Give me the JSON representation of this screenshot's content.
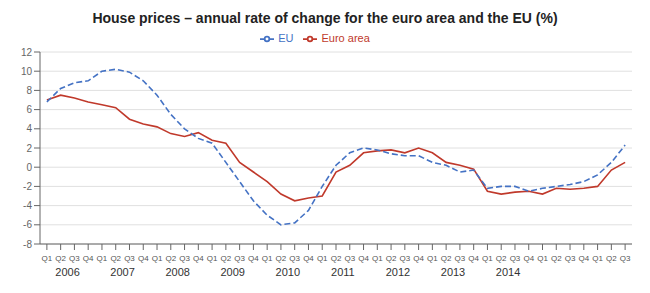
{
  "chart_data": {
    "type": "line",
    "title": "House prices – annual rate of change for the euro area and the EU (%)",
    "categories": [
      "Q1",
      "Q2",
      "Q3",
      "Q4",
      "Q1",
      "Q2",
      "Q3",
      "Q4",
      "Q1",
      "Q2",
      "Q3",
      "Q4",
      "Q1",
      "Q2",
      "Q3",
      "Q4",
      "Q1",
      "Q2",
      "Q3",
      "Q4",
      "Q1",
      "Q2",
      "Q3",
      "Q4",
      "Q1",
      "Q2",
      "Q3",
      "Q4",
      "Q1",
      "Q2",
      "Q3",
      "Q4",
      "Q1",
      "Q2",
      "Q3",
      "Q4",
      "Q1",
      "Q2",
      "Q3",
      "Q4",
      "Q1",
      "Q2",
      "Q3"
    ],
    "series": [
      {
        "name": "Euro area",
        "color": "#c0392b",
        "line_style": "solid",
        "values": [
          7.0,
          7.5,
          7.2,
          6.8,
          6.5,
          6.2,
          5.0,
          4.5,
          4.2,
          3.5,
          3.2,
          3.6,
          2.8,
          2.5,
          0.5,
          -0.5,
          -1.5,
          -2.8,
          -3.5,
          -3.2,
          -3.0,
          -0.5,
          0.2,
          1.5,
          1.7,
          1.8,
          1.5,
          2.0,
          1.5,
          0.5,
          0.2,
          -0.2,
          -2.5,
          -2.8,
          -2.6,
          -2.5,
          -2.8,
          -2.2,
          -2.3,
          -2.2,
          -2.0,
          -0.3,
          0.5
        ]
      },
      {
        "name": "EU",
        "color": "#4472c4",
        "line_style": "dashed",
        "values": [
          6.8,
          8.2,
          8.8,
          9.0,
          10.0,
          10.2,
          9.9,
          9.0,
          7.5,
          5.5,
          4.0,
          3.0,
          2.5,
          0.5,
          -1.5,
          -3.5,
          -5.0,
          -6.0,
          -5.8,
          -4.5,
          -2.0,
          0.2,
          1.5,
          2.0,
          1.8,
          1.4,
          1.2,
          1.2,
          0.5,
          0.2,
          -0.5,
          -0.3,
          -2.2,
          -2.0,
          -2.0,
          -2.5,
          -2.2,
          -2.0,
          -1.8,
          -1.5,
          -0.8,
          0.5,
          2.3
        ]
      }
    ],
    "annotations": [
      {
        "text": "2006",
        "x": 1.5
      },
      {
        "text": "2007",
        "x": 5.5
      },
      {
        "text": "2008",
        "x": 9.5
      },
      {
        "text": "2009",
        "x": 13.5
      },
      {
        "text": "2010",
        "x": 17.5
      },
      {
        "text": "2011",
        "x": 21.5
      },
      {
        "text": "2012",
        "x": 25.5
      },
      {
        "text": "2013",
        "x": 29.5
      },
      {
        "text": "2014",
        "x": 33.5
      }
    ],
    "ylim": [
      -8,
      12
    ],
    "yticks": [
      -8,
      -6,
      -4,
      -2,
      0,
      2,
      4,
      6,
      8,
      10,
      12
    ],
    "grid": true,
    "legend": "upper center"
  }
}
